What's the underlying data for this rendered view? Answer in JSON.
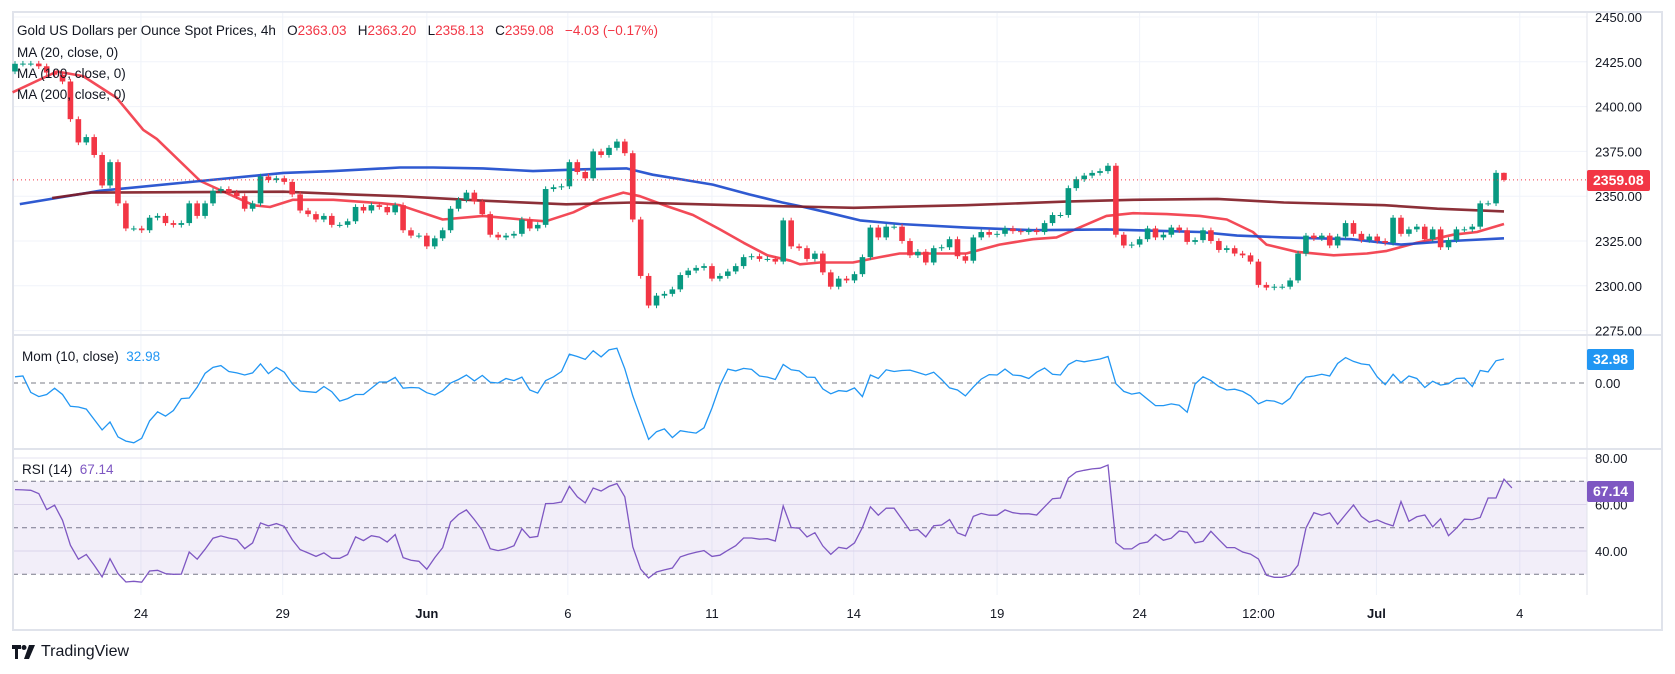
{
  "header": {
    "symbol": "Gold US Dollars per Ounce Spot Prices, 4h",
    "o_label": "O",
    "open": "2363.03",
    "h_label": "H",
    "high": "2363.20",
    "l_label": "L",
    "low": "2358.13",
    "c_label": "C",
    "close": "2359.08",
    "change": "−4.03 (−0.17%)"
  },
  "legend": {
    "ma20": "MA (20, close, 0)",
    "ma100": "MA (100, close, 0)",
    "ma200": "MA (200, close, 0)",
    "mom": "Mom (10, close)",
    "mom_value": "32.98",
    "rsi": "RSI (14)",
    "rsi_value": "67.14"
  },
  "badges": {
    "price": "2359.08",
    "mom": "32.98",
    "rsi": "67.14"
  },
  "branding": "TradingView",
  "colors": {
    "up": "#089981",
    "down": "#f23645",
    "ma20": "#f23645",
    "ma100": "#1848cc",
    "ma200": "#801922",
    "mom": "#2196f3",
    "rsi": "#7e57c2",
    "rsi_band": "#7e57c2"
  },
  "chart_data": [
    {
      "type": "candlestick",
      "title": "Gold US Dollars per Ounce Spot Prices, 4h",
      "ylim": [
        2275,
        2450
      ],
      "y_ticks": [
        "2450.00",
        "2425.00",
        "2400.00",
        "2375.00",
        "2350.00",
        "2325.00",
        "2300.00",
        "2275.00"
      ],
      "y_tick_values": [
        2450,
        2425,
        2400,
        2375,
        2350,
        2325,
        2300,
        2275
      ],
      "x_ticks": [
        {
          "label": "24",
          "bar": 16.9
        },
        {
          "label": "29",
          "bar": 34.8
        },
        {
          "label": "Jun",
          "bar": 53,
          "bold": true
        },
        {
          "label": "6",
          "bar": 70.8
        },
        {
          "label": "11",
          "bar": 89
        },
        {
          "label": "14",
          "bar": 106.9
        },
        {
          "label": "19",
          "bar": 125
        },
        {
          "label": "24",
          "bar": 143
        },
        {
          "label": "12:00",
          "bar": 158
        },
        {
          "label": "Jul",
          "bar": 172.9,
          "bold": true
        },
        {
          "label": "4",
          "bar": 191
        }
      ],
      "grid": true,
      "first_open": 2419.6,
      "last_bar": {
        "open": 2363.03,
        "high": 2363.2,
        "low": 2358.13,
        "close": 2359.08
      },
      "closes": [
        2423.9,
        2424,
        2424,
        2422.5,
        2419,
        2417.8,
        2414,
        2393,
        2380,
        2383,
        2373,
        2356,
        2369,
        2346,
        2332,
        2332,
        2331,
        2338,
        2339,
        2335,
        2334,
        2335,
        2346,
        2339,
        2346,
        2353,
        2354,
        2352,
        2350,
        2343,
        2346,
        2361,
        2359,
        2360,
        2358,
        2351,
        2342,
        2340,
        2337,
        2339,
        2334,
        2334,
        2336,
        2344,
        2342,
        2345,
        2344,
        2341,
        2345,
        2331,
        2328,
        2328,
        2322,
        2326.5,
        2331,
        2343,
        2348,
        2352,
        2347,
        2340,
        2328.5,
        2327,
        2328,
        2329,
        2337,
        2332,
        2334,
        2354,
        2355,
        2355.5,
        2369,
        2363.5,
        2360,
        2375,
        2373,
        2377,
        2380.5,
        2374,
        2337,
        2305.5,
        2289,
        2294.5,
        2295.5,
        2298,
        2306,
        2308.5,
        2310,
        2311,
        2304,
        2305.5,
        2308,
        2311,
        2316,
        2316.5,
        2315,
        2315,
        2313.5,
        2336.5,
        2322,
        2321,
        2315,
        2318,
        2307.5,
        2299.5,
        2304,
        2303,
        2306.5,
        2316,
        2332.5,
        2327,
        2333,
        2333,
        2325,
        2317,
        2319,
        2313,
        2321,
        2321.5,
        2326,
        2316.5,
        2314,
        2327,
        2330,
        2328.5,
        2329,
        2332,
        2330.5,
        2330,
        2331,
        2330,
        2335,
        2339.5,
        2339.5,
        2354.5,
        2359.5,
        2361.5,
        2363,
        2364,
        2367,
        2328.5,
        2322.5,
        2323,
        2326,
        2332,
        2327,
        2328.5,
        2332.5,
        2331,
        2324.5,
        2325.5,
        2331,
        2325,
        2320,
        2321,
        2318,
        2317,
        2313.5,
        2300.5,
        2299,
        2299.5,
        2299.5,
        2303,
        2318,
        2328,
        2326.5,
        2328,
        2322.5,
        2327.5,
        2335,
        2329,
        2325.5,
        2327.5,
        2325,
        2324,
        2338,
        2329,
        2331.5,
        2333,
        2326,
        2331.5,
        2321.5,
        2325.5,
        2331.5,
        2331.5,
        2333,
        2346,
        2346,
        2363.03,
        2359.08
      ],
      "moving_averages": [
        {
          "name": "MA (20, close, 0)",
          "color": "#f23645",
          "points": [
            [
              0.7,
              2408
            ],
            [
              6.3,
              2419.6
            ],
            [
              9.6,
              2417
            ],
            [
              13.8,
              2405
            ],
            [
              17.2,
              2387
            ],
            [
              18.9,
              2382
            ],
            [
              24.4,
              2358.5
            ],
            [
              28.6,
              2350
            ],
            [
              31.1,
              2345
            ],
            [
              33.2,
              2344
            ],
            [
              36.1,
              2348
            ],
            [
              41.2,
              2348
            ],
            [
              47.5,
              2346
            ],
            [
              49.6,
              2345
            ],
            [
              55,
              2337
            ],
            [
              60.1,
              2339
            ],
            [
              65,
              2337
            ],
            [
              68,
              2336
            ],
            [
              71.5,
              2341
            ],
            [
              74.8,
              2348
            ],
            [
              77.8,
              2352
            ],
            [
              79.9,
              2350
            ],
            [
              83.3,
              2344.5
            ],
            [
              86.6,
              2339.5
            ],
            [
              90,
              2331.5
            ],
            [
              93,
              2324
            ],
            [
              96,
              2317
            ],
            [
              98.9,
              2314
            ],
            [
              100.1,
              2312
            ],
            [
              102.6,
              2313
            ],
            [
              106.8,
              2313
            ],
            [
              110.2,
              2316
            ],
            [
              112.7,
              2318
            ],
            [
              116.9,
              2318
            ],
            [
              121.1,
              2318
            ],
            [
              125.3,
              2323
            ],
            [
              129.5,
              2326
            ],
            [
              132.5,
              2327
            ],
            [
              135.4,
              2332.5
            ],
            [
              138.8,
              2339
            ],
            [
              142.2,
              2340.5
            ],
            [
              146.4,
              2340
            ],
            [
              150.6,
              2339
            ],
            [
              154,
              2337
            ],
            [
              157.3,
              2330
            ],
            [
              159,
              2323
            ],
            [
              162.8,
              2319
            ],
            [
              167.5,
              2317
            ],
            [
              171.7,
              2318
            ],
            [
              174.2,
              2319.5
            ],
            [
              178,
              2324
            ],
            [
              182.6,
              2328.5
            ],
            [
              185.6,
              2330
            ],
            [
              189,
              2334.5
            ]
          ]
        },
        {
          "name": "MA (100, close, 0)",
          "color": "#1848cc",
          "points": [
            [
              1.6,
              2345.6
            ],
            [
              11.7,
              2353
            ],
            [
              24.4,
              2358.5
            ],
            [
              34.9,
              2363
            ],
            [
              41.2,
              2364
            ],
            [
              49.6,
              2366
            ],
            [
              53.8,
              2366
            ],
            [
              60.1,
              2365.5
            ],
            [
              66.4,
              2364
            ],
            [
              72.7,
              2365
            ],
            [
              78.2,
              2365.5
            ],
            [
              81.5,
              2362
            ],
            [
              85.7,
              2359
            ],
            [
              89.1,
              2356.5
            ],
            [
              93.7,
              2351
            ],
            [
              97.9,
              2346.5
            ],
            [
              100.1,
              2344.5
            ],
            [
              103.5,
              2341
            ],
            [
              107.7,
              2336.5
            ],
            [
              112.7,
              2334.5
            ],
            [
              121.1,
              2332.5
            ],
            [
              129.5,
              2331
            ],
            [
              138.8,
              2331.5
            ],
            [
              146.4,
              2330.5
            ],
            [
              150.6,
              2330
            ],
            [
              155.3,
              2328
            ],
            [
              161.2,
              2327
            ],
            [
              169.7,
              2326
            ],
            [
              176,
              2323
            ],
            [
              182.3,
              2325
            ],
            [
              189,
              2326.5
            ]
          ]
        },
        {
          "name": "MA (200, close, 0)",
          "color": "#801922",
          "points": [
            [
              5.7,
              2349
            ],
            [
              10.6,
              2352
            ],
            [
              34.9,
              2352.5
            ],
            [
              43.3,
              2351
            ],
            [
              49.6,
              2350
            ],
            [
              60.1,
              2347.5
            ],
            [
              70.6,
              2345.5
            ],
            [
              79,
              2346.5
            ],
            [
              91.6,
              2345
            ],
            [
              102.5,
              2344
            ],
            [
              106.9,
              2343.5
            ],
            [
              121.1,
              2345
            ],
            [
              133.7,
              2347
            ],
            [
              142.2,
              2348
            ],
            [
              152.8,
              2348.5
            ],
            [
              161.2,
              2346.5
            ],
            [
              173.9,
              2345
            ],
            [
              180.6,
              2343
            ],
            [
              189,
              2341.5
            ]
          ]
        }
      ],
      "last_price_line": 2359.08
    },
    {
      "type": "line",
      "title": "Mom (10, close)",
      "ylim": [
        -90,
        60
      ],
      "y_ticks": [
        "0.00"
      ],
      "y_tick_values": [
        0
      ],
      "reference_line": 0,
      "values": [
        8.6,
        9.6,
        -12.9,
        -18.7,
        -15.8,
        -7.2,
        -15.8,
        -32.1,
        -33,
        -35.9,
        -50.2,
        -64.6,
        -53.6,
        -74.2,
        -79.9,
        -82.3,
        -76.1,
        -52.2,
        -39.7,
        -45.5,
        -37.8,
        -21.5,
        -20.6,
        -5.7,
        13.4,
        21.5,
        23.9,
        15.8,
        13.9,
        11,
        13.9,
        26.3,
        12.9,
        21.5,
        14.8,
        -1,
        -11,
        -12,
        -12.9,
        -4.8,
        -12,
        -24.9,
        -21.5,
        -15.8,
        -15.8,
        -7.2,
        1.4,
        1.4,
        7.7,
        -7.2,
        -6.2,
        -6.7,
        -13.4,
        -16.7,
        -10.5,
        0,
        4.8,
        11,
        2.9,
        10.5,
        1,
        0,
        6.2,
        3.3,
        8.1,
        -9.6,
        -13.9,
        3.3,
        8.6,
        15.8,
        39.7,
        36.4,
        32.5,
        44.5,
        35.9,
        45.5,
        47.8,
        19.6,
        -17.7,
        -47.8,
        -77.5,
        -67,
        -63.2,
        -75.1,
        -65.6,
        -67.5,
        -68.9,
        -61.7,
        -34.4,
        -3.3,
        19.1,
        16.7,
        20.1,
        18.7,
        9.6,
        8.1,
        4.8,
        25.4,
        18.2,
        16.7,
        8.1,
        7.7,
        -8.1,
        -14.8,
        -10.5,
        -11.5,
        -6.7,
        -18.7,
        11,
        6.2,
        18.2,
        15.8,
        17.2,
        17.7,
        14.4,
        11,
        14.8,
        4.8,
        -6.7,
        -9.6,
        -17.7,
        -5.7,
        5.3,
        11.5,
        11,
        19.1,
        11,
        10,
        6.2,
        14.8,
        20.6,
        12,
        11,
        25.4,
        31.1,
        29.2,
        31.1,
        33,
        36.4,
        -1,
        -11.5,
        -15.3,
        -13.4,
        -22.5,
        -31.1,
        -31.1,
        -28.7,
        -30.6,
        -40.2,
        -1.4,
        8.6,
        3.3,
        -4.8,
        -9.6,
        -8.6,
        -11.5,
        -17.7,
        -28.7,
        -23.9,
        -24.9,
        -29.2,
        -21.1,
        -3.3,
        8.1,
        9.6,
        12,
        9.6,
        26.8,
        34.9,
        29.7,
        26.3,
        24.9,
        8.6,
        -2.4,
        12,
        0.5,
        9.6,
        6.2,
        -6.2,
        2.4,
        -2.9,
        -1,
        6.2,
        6.7,
        -4.8,
        17.2,
        15.3,
        30.6,
        32.98
      ]
    },
    {
      "type": "line",
      "title": "RSI (14)",
      "ylim": [
        30,
        80
      ],
      "y_ticks": [
        "80.00",
        "60.00",
        "40.00"
      ],
      "y_tick_values": [
        80,
        60,
        40
      ],
      "levels": [
        70,
        50,
        30
      ],
      "band": [
        30,
        70
      ],
      "values": [
        66.4,
        66.3,
        66.1,
        64.7,
        57.8,
        59.7,
        53.2,
        42.5,
        36.5,
        38.5,
        33.9,
        28.9,
        36.7,
        30.3,
        26.7,
        27,
        26.6,
        31.4,
        31.7,
        30.3,
        30,
        30.1,
        39.6,
        36.5,
        40.8,
        45.5,
        46.5,
        45.6,
        44.9,
        41,
        43.5,
        52.1,
        50.8,
        51.8,
        50.6,
        44.9,
        40.6,
        39.2,
        37.7,
        39.2,
        36.9,
        36.9,
        38.5,
        46.1,
        44.5,
        46.6,
        46,
        43.9,
        47.1,
        37.2,
        36,
        35.6,
        32.2,
        37.2,
        41.5,
        52.5,
        55.7,
        57.7,
        53.5,
        48.9,
        41,
        40.2,
        40.9,
        42.3,
        49.6,
        45.8,
        46.3,
        60.4,
        60.5,
        61.1,
        67.8,
        63.3,
        60.7,
        67.1,
        65.8,
        67.8,
        69,
        63.3,
        41.8,
        32.2,
        28.4,
        31,
        31.9,
        32.7,
        37.5,
        38.6,
        39.5,
        40.2,
        37.7,
        38.2,
        40.3,
        42.3,
        45.6,
        45.6,
        45.1,
        45.3,
        44.3,
        59.4,
        50.1,
        49.8,
        46.1,
        47.9,
        42.2,
        38.6,
        41.6,
        41,
        43.5,
        50.1,
        59,
        55.4,
        58.4,
        58.4,
        53.7,
        48.8,
        49.2,
        46.1,
        50.9,
        51.2,
        53.5,
        47.8,
        46.5,
        54.9,
        56.2,
        55.4,
        55.4,
        57.7,
        56.5,
        56,
        56,
        55.5,
        59,
        62.5,
        62.8,
        71.4,
        74,
        74.7,
        75.3,
        75.6,
        77,
        43.6,
        40.9,
        40.9,
        43.2,
        43.9,
        47.1,
        44.6,
        45.5,
        48.6,
        48.1,
        43.5,
        44.2,
        48.5,
        44.9,
        41.5,
        41.5,
        39.6,
        38.7,
        36.6,
        29.6,
        28.7,
        28.7,
        29.6,
        33.9,
        49.9,
        56.5,
        55.4,
        56.4,
        51.5,
        55.7,
        59.8,
        54.9,
        52.4,
        53.4,
        51.9,
        50.8,
        61.3,
        52.8,
        54.7,
        55.5,
        50.4,
        53.9,
        46.6,
        49.8,
        53.7,
        53.5,
        54.4,
        62.8,
        62.8,
        70.9,
        67.14
      ]
    }
  ]
}
